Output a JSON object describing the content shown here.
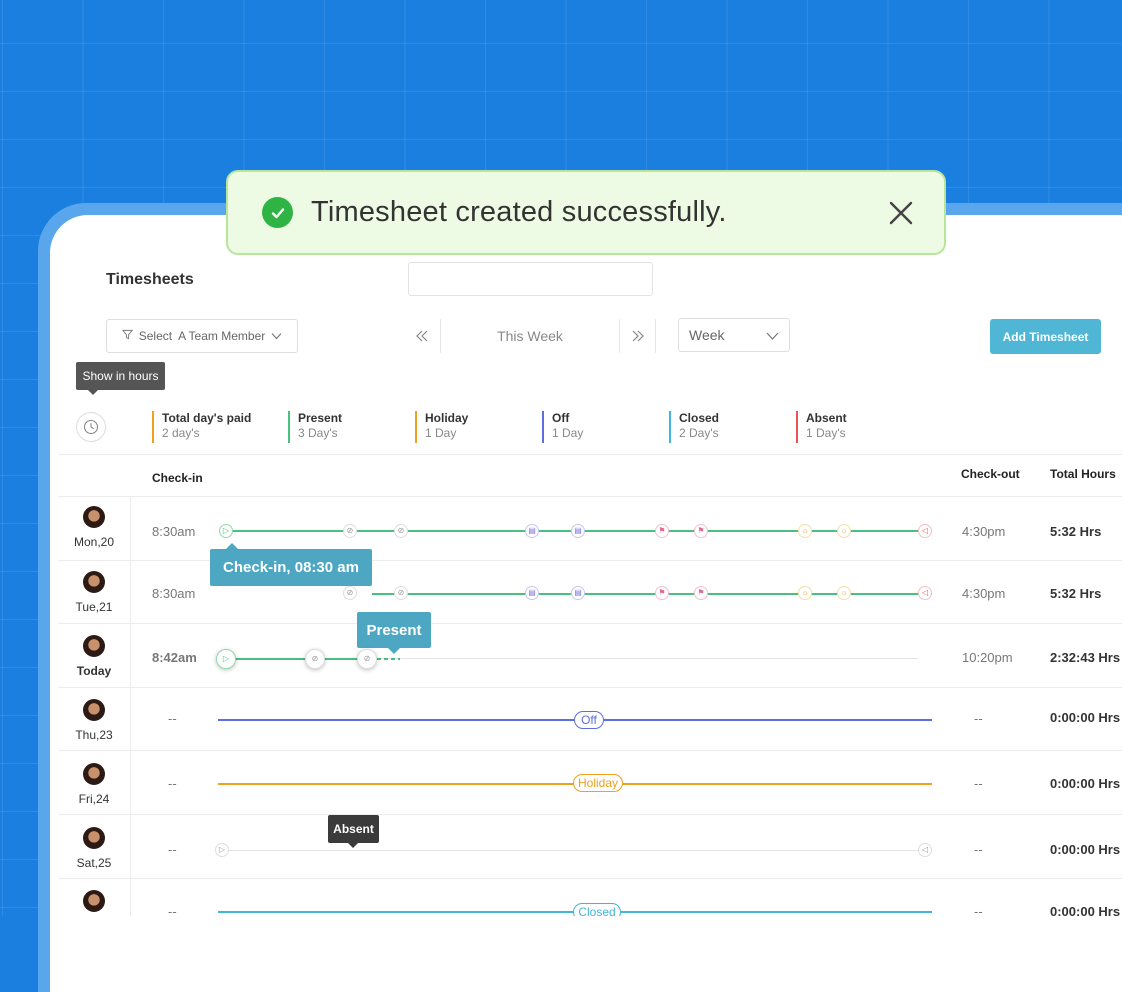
{
  "toast": {
    "message": "Timesheet created successfully."
  },
  "header": {
    "title": "Timesheets"
  },
  "toolbar": {
    "team_select": "Select  A Team Member",
    "week_label": "This Week",
    "period": "Week",
    "add_button": "Add Timesheet"
  },
  "tooltip_hours": "Show in hours",
  "summary": [
    {
      "label": "Total day's paid",
      "value": "2 day's",
      "color": "#f0a020"
    },
    {
      "label": "Present",
      "value": "3 Day's",
      "color": "#49c07f"
    },
    {
      "label": "Holiday",
      "value": "1 Day",
      "color": "#f0a020"
    },
    {
      "label": "Off",
      "value": "1 Day",
      "color": "#5b6fe0"
    },
    {
      "label": "Closed",
      "value": "2 Day's",
      "color": "#41b6d9"
    },
    {
      "label": "Absent",
      "value": "1 Day's",
      "color": "#e8545a"
    }
  ],
  "columns": {
    "checkin": "Check-in",
    "checkout": "Check-out",
    "total": "Total Hours"
  },
  "rows": [
    {
      "day": "Mon,20",
      "checkin": "8:30am",
      "checkout": "4:30pm",
      "total": "5:32  Hrs",
      "status": ""
    },
    {
      "day": "Tue,21",
      "checkin": "8:30am",
      "checkout": "4:30pm",
      "total": "5:32 Hrs",
      "status": ""
    },
    {
      "day": "Today",
      "checkin": "8:42am",
      "checkout": "10:20pm",
      "total": "2:32:43 Hrs",
      "status": ""
    },
    {
      "day": "Thu,23",
      "checkin": "--",
      "checkout": "--",
      "total": "0:00:00 Hrs",
      "status": "Off"
    },
    {
      "day": "Fri,24",
      "checkin": "--",
      "checkout": "--",
      "total": "0:00:00 Hrs",
      "status": "Holiday"
    },
    {
      "day": "Sat,25",
      "checkin": "--",
      "checkout": "--",
      "total": "0:00:00 Hrs",
      "status": ""
    },
    {
      "day": "",
      "checkin": "--",
      "checkout": "--",
      "total": "0:00:00 Hrs",
      "status": "Closed"
    }
  ],
  "tooltips": {
    "checkin": "Check-in, 08:30 am",
    "present": "Present",
    "absent": "Absent"
  },
  "colors": {
    "present": "#49c07f",
    "off": "#5b6fe0",
    "holiday": "#f0a020",
    "closed": "#41b6d9",
    "accent": "#4fb6d6"
  }
}
